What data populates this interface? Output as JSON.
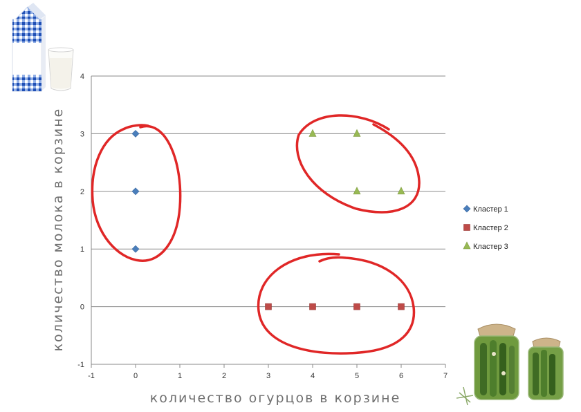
{
  "chart_data": {
    "type": "scatter",
    "title": "",
    "xlabel": "количество огурцов в корзине",
    "ylabel": "количество молока в корзине",
    "xlim": [
      -1,
      7
    ],
    "ylim": [
      -1,
      4
    ],
    "xticks": [
      "-1",
      "0",
      "1",
      "2",
      "3",
      "4",
      "5",
      "6",
      "7"
    ],
    "yticks": [
      "-1",
      "0",
      "1",
      "2",
      "3",
      "4"
    ],
    "grid": "horizontal",
    "legend_position": "right",
    "series": [
      {
        "name": "Кластер 1",
        "marker": "diamond",
        "color": "#4a7ebb",
        "points": [
          [
            0,
            3
          ],
          [
            0,
            2
          ],
          [
            0,
            1
          ]
        ]
      },
      {
        "name": "Кластер 2",
        "marker": "square",
        "color": "#be4b48",
        "points": [
          [
            3,
            0
          ],
          [
            4,
            0
          ],
          [
            5,
            0
          ],
          [
            6,
            0
          ]
        ]
      },
      {
        "name": "Кластер 3",
        "marker": "triangle",
        "color": "#98b954",
        "points": [
          [
            4,
            3
          ],
          [
            5,
            3
          ],
          [
            5,
            2
          ],
          [
            6,
            2
          ]
        ]
      }
    ],
    "annotations": [
      {
        "shape": "hand-drawn-ellipse",
        "color": "#e02727",
        "encloses": "Кластер 1"
      },
      {
        "shape": "hand-drawn-ellipse",
        "color": "#e02727",
        "encloses": "Кластер 2"
      },
      {
        "shape": "hand-drawn-ellipse",
        "color": "#e02727",
        "encloses": "Кластер 3"
      }
    ]
  },
  "illustrations": {
    "top_left": "milk-carton-and-glass-icon",
    "bottom_right": "pickled-cucumber-jars-icon"
  }
}
